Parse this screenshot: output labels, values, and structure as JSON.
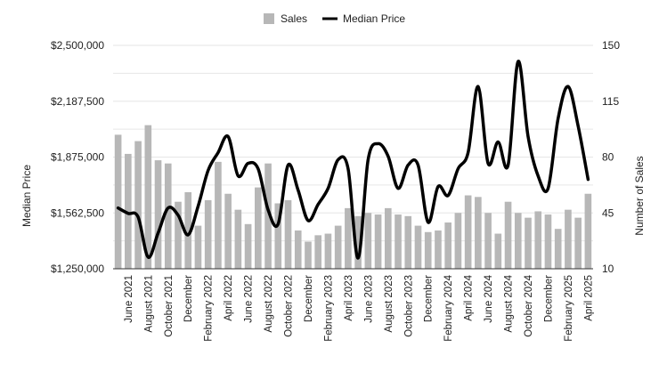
{
  "legend": {
    "bar_label": "Sales",
    "line_label": "Median Price"
  },
  "colors": {
    "bar": "#b7b7b7",
    "line": "#000000",
    "grid": "#e6e6e6",
    "text": "#222222"
  },
  "chart_data": {
    "type": "bar",
    "title": "",
    "legend_position": "top-center",
    "grid": true,
    "y_left": {
      "label": "Median Price",
      "range": [
        1250000,
        2500000
      ],
      "ticks": [
        "$2,500,000",
        "$2,187,500",
        "$1,875,000",
        "$1,562,500",
        "$1,250,000"
      ]
    },
    "y_right": {
      "label": "Number of Sales",
      "range": [
        10,
        150
      ],
      "ticks": [
        "150",
        "115",
        "80",
        "45",
        "10"
      ]
    },
    "x_tick_labels": [
      "June  2021",
      "August 2021",
      "October 2021",
      "December",
      "February 2022",
      "April 2022",
      "June  2022",
      "August 2022",
      "October 2022",
      "December",
      "February 2023",
      "April 2023",
      "June 2023",
      "August 2023",
      "October 2023",
      "December",
      "February 2024",
      "April 2024",
      "June 2024",
      "August 2024",
      "October 2024",
      "December",
      "February 2025",
      "April 2025"
    ],
    "categories": [
      "May 2021",
      "June 2021",
      "July 2021",
      "August 2021",
      "September 2021",
      "October 2021",
      "November 2021",
      "December 2021",
      "January 2022",
      "February 2022",
      "March 2022",
      "April 2022",
      "May 2022",
      "June 2022",
      "July 2022",
      "August 2022",
      "September 2022",
      "October 2022",
      "November 2022",
      "December 2022",
      "January 2023",
      "February 2023",
      "March 2023",
      "April 2023",
      "May 2023",
      "June 2023",
      "July 2023",
      "August 2023",
      "September 2023",
      "October 2023",
      "November 2023",
      "December 2023",
      "January 2024",
      "February 2024",
      "March 2024",
      "April 2024",
      "May 2024",
      "June 2024",
      "July 2024",
      "August 2024",
      "September 2024",
      "October 2024",
      "November 2024",
      "December 2024",
      "January 2025",
      "February 2025",
      "March 2025",
      "April 2025"
    ],
    "series": [
      {
        "name": "Sales",
        "type": "bar",
        "axis": "right",
        "values": [
          94,
          82,
          90,
          100,
          78,
          76,
          52,
          58,
          37,
          53,
          77,
          57,
          47,
          38,
          61,
          76,
          51,
          53,
          34,
          27,
          31,
          32,
          37,
          48,
          43,
          45,
          44,
          48,
          44,
          43,
          37,
          33,
          34,
          39,
          45,
          56,
          55,
          45,
          32,
          52,
          45,
          42,
          46,
          44,
          35,
          47,
          42,
          57
        ]
      },
      {
        "name": "Median Price",
        "type": "line",
        "axis": "left",
        "values": [
          1590000,
          1560000,
          1540000,
          1315000,
          1450000,
          1590000,
          1550000,
          1440000,
          1600000,
          1800000,
          1900000,
          1990000,
          1770000,
          1840000,
          1810000,
          1580000,
          1500000,
          1830000,
          1690000,
          1520000,
          1610000,
          1700000,
          1860000,
          1810000,
          1310000,
          1860000,
          1950000,
          1880000,
          1700000,
          1830000,
          1830000,
          1510000,
          1710000,
          1660000,
          1810000,
          1900000,
          2270000,
          1840000,
          1960000,
          1830000,
          2410000,
          1990000,
          1770000,
          1700000,
          2090000,
          2270000,
          2050000,
          1750000
        ]
      }
    ]
  }
}
